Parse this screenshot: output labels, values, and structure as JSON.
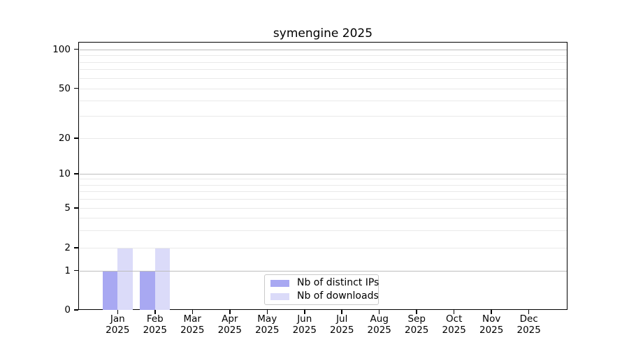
{
  "title": "symengine 2025",
  "legend": {
    "items": [
      {
        "label": "Nb of distinct IPs",
        "color": "#a8a8f2"
      },
      {
        "label": "Nb of downloads",
        "color": "#dbdbf9"
      }
    ]
  },
  "chart_data": {
    "type": "bar",
    "title": "symengine 2025",
    "categories": [
      "Jan 2025",
      "Feb 2025",
      "Mar 2025",
      "Apr 2025",
      "May 2025",
      "Jun 2025",
      "Jul 2025",
      "Aug 2025",
      "Sep 2025",
      "Oct 2025",
      "Nov 2025",
      "Dec 2025"
    ],
    "x_tick_months": [
      "Jan",
      "Feb",
      "Mar",
      "Apr",
      "May",
      "Jun",
      "Jul",
      "Aug",
      "Sep",
      "Oct",
      "Nov",
      "Dec"
    ],
    "x_tick_year": "2025",
    "series": [
      {
        "name": "Nb of distinct IPs",
        "color": "#a8a8f2",
        "values": [
          1,
          1,
          0,
          0,
          0,
          0,
          0,
          0,
          0,
          0,
          0,
          0
        ]
      },
      {
        "name": "Nb of downloads",
        "color": "#dbdbf9",
        "values": [
          2,
          2,
          0,
          0,
          0,
          0,
          0,
          0,
          0,
          0,
          0,
          0
        ]
      }
    ],
    "xlabel": "",
    "ylabel": "",
    "yscale": "symlog",
    "ylim": [
      0,
      115
    ],
    "y_major_ticks": [
      0,
      1,
      2,
      5,
      10,
      20,
      50,
      100
    ],
    "y_decade_lines": [
      1,
      10,
      100
    ],
    "y_minor_lines": [
      2,
      3,
      4,
      5,
      6,
      7,
      8,
      9,
      20,
      30,
      40,
      50,
      60,
      70,
      80,
      90
    ],
    "grid": "horizontal only: decade lines darker, minor lines faint, drawn over bars",
    "legend_position": "inside lower-center"
  },
  "colors": {
    "bar_distinct_ips": "#a8a8f2",
    "bar_downloads": "#dbdbf9",
    "grid_major": "#bdbdbd",
    "grid_minor": "#e9e9e9",
    "axis": "#000000",
    "text": "#000000",
    "legend_border": "#c9c9c9",
    "background": "#ffffff"
  }
}
